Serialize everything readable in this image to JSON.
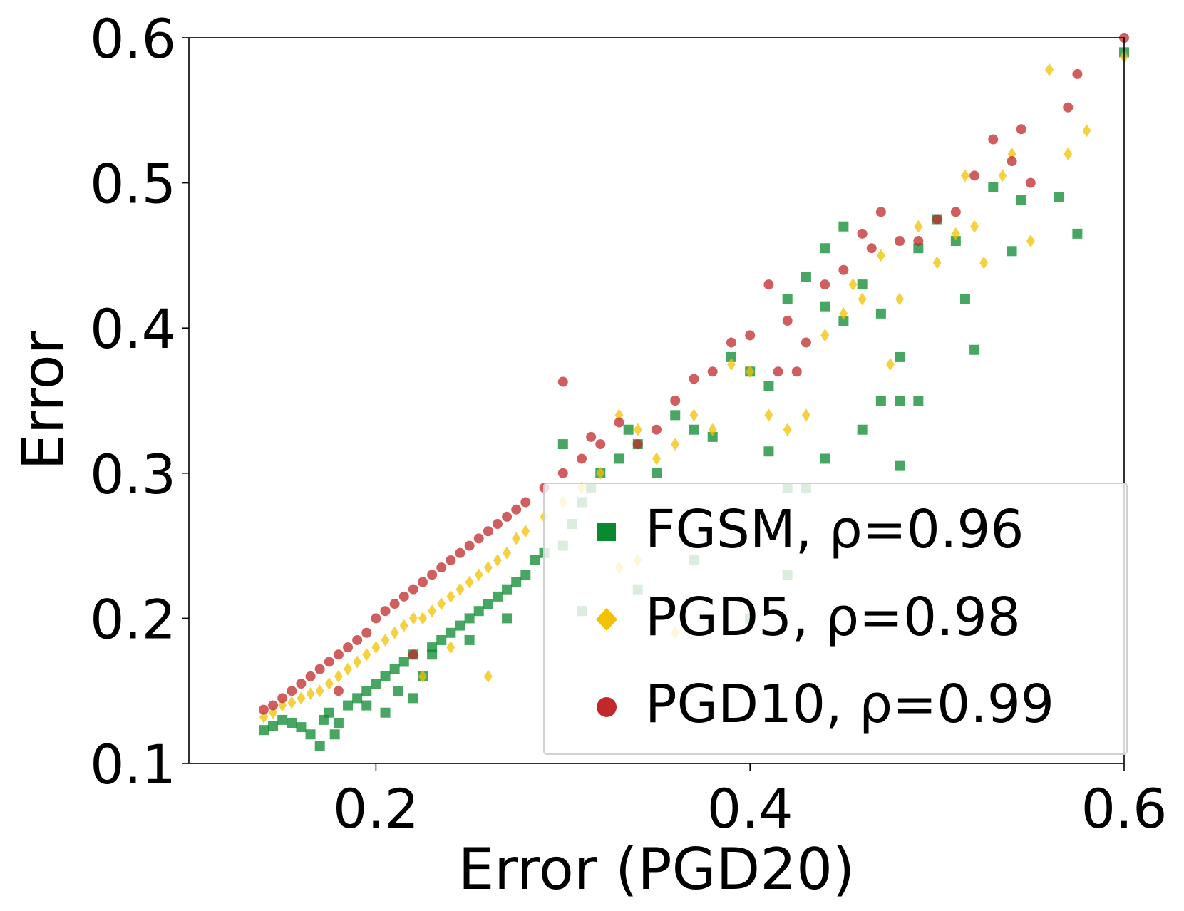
{
  "chart_data": {
    "type": "scatter",
    "title": "",
    "xlabel": "Error (PGD20)",
    "ylabel": "Error",
    "xlim": [
      0.1,
      0.6
    ],
    "ylim": [
      0.1,
      0.6
    ],
    "xticks": [
      0.2,
      0.4,
      0.6
    ],
    "xtick_labels": [
      "0.2",
      "0.4",
      "0.6"
    ],
    "yticks": [
      0.1,
      0.2,
      0.3,
      0.4,
      0.5,
      0.6
    ],
    "ytick_labels": [
      "0.1",
      "0.2",
      "0.3",
      "0.4",
      "0.5",
      "0.6"
    ],
    "grid": false,
    "legend_position": "lower-right",
    "series": [
      {
        "name": "FGSM",
        "rho_label": "FGSM, ρ=0.96",
        "marker": "square",
        "color": "#0a8a2e",
        "points": [
          [
            0.14,
            0.123
          ],
          [
            0.145,
            0.126
          ],
          [
            0.15,
            0.13
          ],
          [
            0.155,
            0.128
          ],
          [
            0.16,
            0.125
          ],
          [
            0.165,
            0.12
          ],
          [
            0.17,
            0.112
          ],
          [
            0.172,
            0.13
          ],
          [
            0.175,
            0.135
          ],
          [
            0.178,
            0.12
          ],
          [
            0.18,
            0.128
          ],
          [
            0.185,
            0.14
          ],
          [
            0.19,
            0.145
          ],
          [
            0.195,
            0.15
          ],
          [
            0.2,
            0.155
          ],
          [
            0.205,
            0.16
          ],
          [
            0.21,
            0.165
          ],
          [
            0.212,
            0.15
          ],
          [
            0.215,
            0.17
          ],
          [
            0.22,
            0.175
          ],
          [
            0.225,
            0.16
          ],
          [
            0.23,
            0.18
          ],
          [
            0.235,
            0.185
          ],
          [
            0.24,
            0.19
          ],
          [
            0.245,
            0.195
          ],
          [
            0.25,
            0.2
          ],
          [
            0.255,
            0.205
          ],
          [
            0.26,
            0.21
          ],
          [
            0.265,
            0.215
          ],
          [
            0.27,
            0.22
          ],
          [
            0.275,
            0.225
          ],
          [
            0.28,
            0.23
          ],
          [
            0.285,
            0.24
          ],
          [
            0.29,
            0.245
          ],
          [
            0.3,
            0.25
          ],
          [
            0.305,
            0.265
          ],
          [
            0.31,
            0.28
          ],
          [
            0.315,
            0.29
          ],
          [
            0.32,
            0.3
          ],
          [
            0.3,
            0.32
          ],
          [
            0.33,
            0.31
          ],
          [
            0.335,
            0.33
          ],
          [
            0.34,
            0.32
          ],
          [
            0.35,
            0.3
          ],
          [
            0.36,
            0.34
          ],
          [
            0.37,
            0.33
          ],
          [
            0.38,
            0.325
          ],
          [
            0.39,
            0.38
          ],
          [
            0.4,
            0.37
          ],
          [
            0.41,
            0.36
          ],
          [
            0.41,
            0.315
          ],
          [
            0.42,
            0.29
          ],
          [
            0.43,
            0.29
          ],
          [
            0.44,
            0.31
          ],
          [
            0.44,
            0.415
          ],
          [
            0.45,
            0.47
          ],
          [
            0.45,
            0.405
          ],
          [
            0.46,
            0.43
          ],
          [
            0.47,
            0.41
          ],
          [
            0.47,
            0.35
          ],
          [
            0.48,
            0.35
          ],
          [
            0.48,
            0.305
          ],
          [
            0.49,
            0.455
          ],
          [
            0.49,
            0.35
          ],
          [
            0.5,
            0.475
          ],
          [
            0.51,
            0.46
          ],
          [
            0.515,
            0.42
          ],
          [
            0.52,
            0.385
          ],
          [
            0.53,
            0.497
          ],
          [
            0.54,
            0.453
          ],
          [
            0.545,
            0.488
          ],
          [
            0.565,
            0.49
          ],
          [
            0.575,
            0.465
          ],
          [
            0.6,
            0.59
          ],
          [
            0.46,
            0.33
          ],
          [
            0.43,
            0.435
          ],
          [
            0.42,
            0.42
          ],
          [
            0.44,
            0.455
          ],
          [
            0.48,
            0.38
          ],
          [
            0.37,
            0.24
          ],
          [
            0.4,
            0.2
          ],
          [
            0.42,
            0.23
          ],
          [
            0.34,
            0.22
          ],
          [
            0.31,
            0.205
          ],
          [
            0.27,
            0.2
          ],
          [
            0.25,
            0.185
          ],
          [
            0.23,
            0.175
          ],
          [
            0.22,
            0.145
          ],
          [
            0.195,
            0.14
          ],
          [
            0.205,
            0.135
          ]
        ]
      },
      {
        "name": "PGD5",
        "rho_label": "PGD5, ρ=0.98",
        "marker": "diamond",
        "color": "#f2c200",
        "points": [
          [
            0.14,
            0.132
          ],
          [
            0.145,
            0.135
          ],
          [
            0.15,
            0.14
          ],
          [
            0.155,
            0.142
          ],
          [
            0.16,
            0.145
          ],
          [
            0.165,
            0.148
          ],
          [
            0.17,
            0.15
          ],
          [
            0.175,
            0.155
          ],
          [
            0.18,
            0.16
          ],
          [
            0.185,
            0.165
          ],
          [
            0.19,
            0.17
          ],
          [
            0.195,
            0.175
          ],
          [
            0.2,
            0.18
          ],
          [
            0.205,
            0.185
          ],
          [
            0.21,
            0.19
          ],
          [
            0.215,
            0.195
          ],
          [
            0.22,
            0.2
          ],
          [
            0.225,
            0.2
          ],
          [
            0.23,
            0.205
          ],
          [
            0.235,
            0.21
          ],
          [
            0.24,
            0.215
          ],
          [
            0.245,
            0.22
          ],
          [
            0.25,
            0.225
          ],
          [
            0.255,
            0.23
          ],
          [
            0.26,
            0.235
          ],
          [
            0.265,
            0.24
          ],
          [
            0.27,
            0.245
          ],
          [
            0.275,
            0.255
          ],
          [
            0.28,
            0.26
          ],
          [
            0.29,
            0.27
          ],
          [
            0.3,
            0.28
          ],
          [
            0.31,
            0.29
          ],
          [
            0.32,
            0.3
          ],
          [
            0.33,
            0.34
          ],
          [
            0.34,
            0.33
          ],
          [
            0.35,
            0.31
          ],
          [
            0.36,
            0.32
          ],
          [
            0.37,
            0.34
          ],
          [
            0.38,
            0.33
          ],
          [
            0.39,
            0.375
          ],
          [
            0.4,
            0.37
          ],
          [
            0.41,
            0.34
          ],
          [
            0.42,
            0.33
          ],
          [
            0.43,
            0.34
          ],
          [
            0.44,
            0.395
          ],
          [
            0.45,
            0.41
          ],
          [
            0.455,
            0.43
          ],
          [
            0.46,
            0.42
          ],
          [
            0.47,
            0.45
          ],
          [
            0.475,
            0.375
          ],
          [
            0.48,
            0.42
          ],
          [
            0.49,
            0.47
          ],
          [
            0.5,
            0.445
          ],
          [
            0.51,
            0.465
          ],
          [
            0.515,
            0.505
          ],
          [
            0.52,
            0.47
          ],
          [
            0.525,
            0.445
          ],
          [
            0.535,
            0.505
          ],
          [
            0.54,
            0.52
          ],
          [
            0.55,
            0.46
          ],
          [
            0.56,
            0.578
          ],
          [
            0.57,
            0.52
          ],
          [
            0.58,
            0.536
          ],
          [
            0.6,
            0.587
          ],
          [
            0.33,
            0.235
          ],
          [
            0.34,
            0.24
          ],
          [
            0.36,
            0.19
          ],
          [
            0.26,
            0.16
          ],
          [
            0.24,
            0.18
          ],
          [
            0.225,
            0.16
          ]
        ]
      },
      {
        "name": "PGD10",
        "rho_label": "PGD10, ρ=0.99",
        "marker": "circle",
        "color": "#c0282a",
        "points": [
          [
            0.14,
            0.137
          ],
          [
            0.145,
            0.14
          ],
          [
            0.15,
            0.145
          ],
          [
            0.155,
            0.15
          ],
          [
            0.16,
            0.155
          ],
          [
            0.165,
            0.16
          ],
          [
            0.17,
            0.165
          ],
          [
            0.175,
            0.17
          ],
          [
            0.18,
            0.175
          ],
          [
            0.185,
            0.18
          ],
          [
            0.19,
            0.185
          ],
          [
            0.195,
            0.19
          ],
          [
            0.2,
            0.2
          ],
          [
            0.205,
            0.205
          ],
          [
            0.21,
            0.21
          ],
          [
            0.215,
            0.215
          ],
          [
            0.22,
            0.22
          ],
          [
            0.225,
            0.225
          ],
          [
            0.23,
            0.23
          ],
          [
            0.235,
            0.235
          ],
          [
            0.24,
            0.24
          ],
          [
            0.245,
            0.245
          ],
          [
            0.25,
            0.25
          ],
          [
            0.255,
            0.255
          ],
          [
            0.26,
            0.26
          ],
          [
            0.265,
            0.265
          ],
          [
            0.27,
            0.27
          ],
          [
            0.275,
            0.275
          ],
          [
            0.28,
            0.28
          ],
          [
            0.29,
            0.29
          ],
          [
            0.3,
            0.3
          ],
          [
            0.3,
            0.363
          ],
          [
            0.31,
            0.31
          ],
          [
            0.315,
            0.325
          ],
          [
            0.32,
            0.32
          ],
          [
            0.33,
            0.335
          ],
          [
            0.34,
            0.32
          ],
          [
            0.35,
            0.33
          ],
          [
            0.36,
            0.35
          ],
          [
            0.37,
            0.365
          ],
          [
            0.38,
            0.37
          ],
          [
            0.39,
            0.39
          ],
          [
            0.4,
            0.395
          ],
          [
            0.41,
            0.43
          ],
          [
            0.415,
            0.37
          ],
          [
            0.42,
            0.405
          ],
          [
            0.425,
            0.37
          ],
          [
            0.43,
            0.39
          ],
          [
            0.44,
            0.43
          ],
          [
            0.45,
            0.44
          ],
          [
            0.46,
            0.465
          ],
          [
            0.465,
            0.455
          ],
          [
            0.47,
            0.48
          ],
          [
            0.48,
            0.46
          ],
          [
            0.49,
            0.46
          ],
          [
            0.5,
            0.475
          ],
          [
            0.51,
            0.48
          ],
          [
            0.52,
            0.505
          ],
          [
            0.53,
            0.53
          ],
          [
            0.54,
            0.515
          ],
          [
            0.545,
            0.537
          ],
          [
            0.55,
            0.5
          ],
          [
            0.57,
            0.552
          ],
          [
            0.575,
            0.575
          ],
          [
            0.6,
            0.6
          ],
          [
            0.18,
            0.15
          ],
          [
            0.22,
            0.175
          ]
        ]
      }
    ]
  }
}
